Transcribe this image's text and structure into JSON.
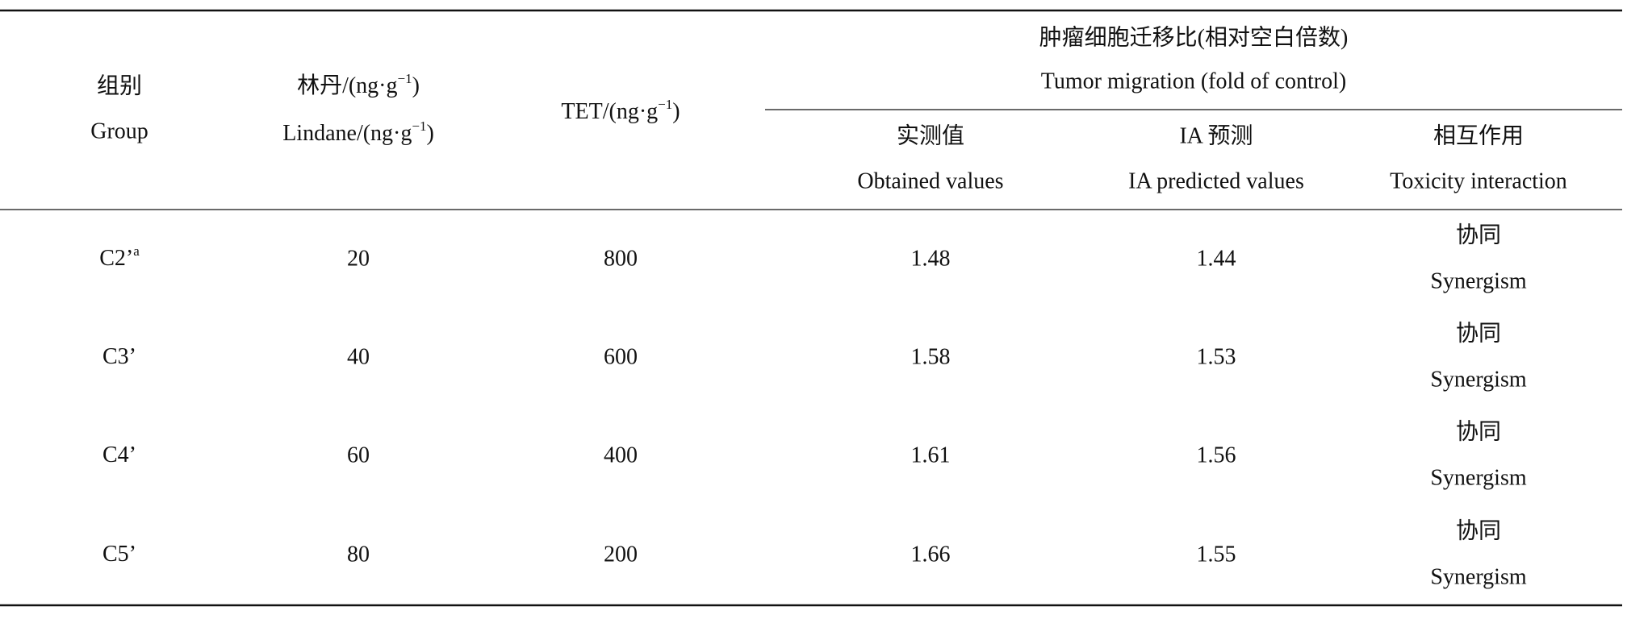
{
  "table": {
    "header": {
      "group": {
        "zh": "组别",
        "en": "Group"
      },
      "lindane": {
        "zh": [
          "林丹/(ng·g",
          "−1",
          ")"
        ],
        "en": [
          "Lindane/(ng·g",
          "−1",
          ")"
        ]
      },
      "tet": [
        "TET/(ng·g",
        "−1",
        ")"
      ],
      "migration": {
        "zh": "肿瘤细胞迁移比(相对空白倍数)",
        "en": "Tumor migration (fold of control)"
      },
      "obtained": {
        "zh": "实测值",
        "en": "Obtained values"
      },
      "predicted": {
        "zh": "IA 预测",
        "en": "IA predicted values"
      },
      "interaction": {
        "zh": "相互作用",
        "en": "Toxicity interaction"
      }
    },
    "rows": [
      {
        "group": "C2’",
        "note": "a",
        "lindane": 20,
        "tet": 800,
        "obtained": 1.48,
        "predicted": 1.44,
        "interaction": {
          "zh": "协同",
          "en": "Synergism"
        }
      },
      {
        "group": "C3’",
        "lindane": 40,
        "tet": 600,
        "obtained": 1.58,
        "predicted": 1.53,
        "interaction": {
          "zh": "协同",
          "en": "Synergism"
        }
      },
      {
        "group": "C4’",
        "lindane": 60,
        "tet": 400,
        "obtained": 1.61,
        "predicted": 1.56,
        "interaction": {
          "zh": "协同",
          "en": "Synergism"
        }
      },
      {
        "group": "C5’",
        "lindane": 80,
        "tet": 200,
        "obtained": 1.66,
        "predicted": 1.55,
        "interaction": {
          "zh": "协同",
          "en": "Synergism"
        }
      }
    ]
  }
}
